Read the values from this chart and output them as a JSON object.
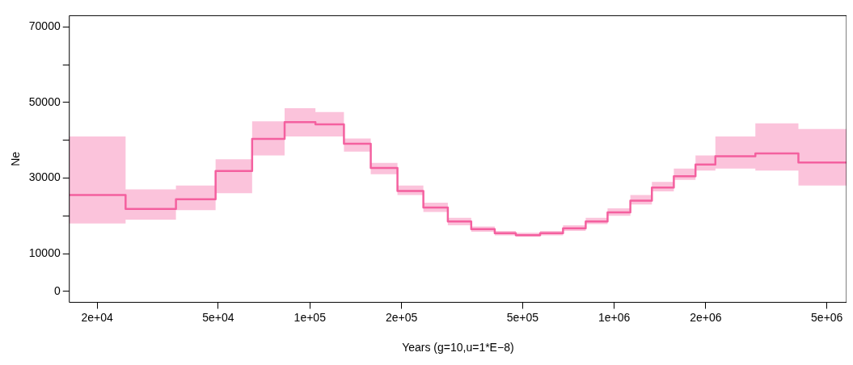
{
  "chart_data": {
    "type": "step",
    "xlabel": "Years (g=10,u=1*E−8)",
    "ylabel": "Ne",
    "log": "x",
    "grid": false,
    "legend": false,
    "xlim": [
      16200,
      5800000
    ],
    "ylim": [
      -2900,
      73000
    ],
    "xticks": [
      {
        "value": 20000,
        "label": "2e+04"
      },
      {
        "value": 50000,
        "label": "5e+04"
      },
      {
        "value": 100000,
        "label": "1e+05"
      },
      {
        "value": 200000,
        "label": "2e+05"
      },
      {
        "value": 500000,
        "label": "5e+05"
      },
      {
        "value": 1000000,
        "label": "1e+06"
      },
      {
        "value": 2000000,
        "label": "2e+06"
      },
      {
        "value": 5000000,
        "label": "5e+06"
      }
    ],
    "yticks": [
      0,
      10000,
      {
        "value": 20000,
        "label": null
      },
      30000,
      {
        "value": 40000,
        "label": null
      },
      50000,
      {
        "value": 60000,
        "label": null
      },
      70000
    ],
    "x": [
      16200,
      24800,
      36300,
      49000,
      64600,
      82600,
      104300,
      129400,
      158500,
      194000,
      236000,
      284000,
      339000,
      405000,
      475000,
      571000,
      679000,
      806000,
      951000,
      1130000,
      1330000,
      1570000,
      1850000,
      2150000,
      2910000,
      4030000,
      5800000
    ],
    "series": [
      {
        "color": "#f4609f",
        "values": [
          25500,
          21800,
          24400,
          31900,
          40400,
          44800,
          44200,
          39100,
          32700,
          26600,
          22200,
          18500,
          16500,
          15400,
          14900,
          15400,
          16700,
          18500,
          20900,
          24000,
          27500,
          30500,
          33600,
          35800,
          36500,
          34100,
          34100
        ],
        "lower": [
          18000,
          19000,
          21500,
          26000,
          36000,
          41000,
          41000,
          37000,
          31000,
          25500,
          21000,
          17500,
          15800,
          14800,
          14500,
          14800,
          16000,
          17800,
          20000,
          23000,
          26500,
          29500,
          32000,
          32500,
          32000,
          28000,
          28000
        ],
        "upper": [
          41000,
          27000,
          28000,
          35000,
          45000,
          48500,
          47500,
          40500,
          34000,
          28000,
          23500,
          19500,
          17200,
          16000,
          15500,
          16000,
          17500,
          19500,
          22000,
          25500,
          29000,
          32500,
          36000,
          41000,
          44500,
          43000,
          43000
        ]
      }
    ]
  }
}
